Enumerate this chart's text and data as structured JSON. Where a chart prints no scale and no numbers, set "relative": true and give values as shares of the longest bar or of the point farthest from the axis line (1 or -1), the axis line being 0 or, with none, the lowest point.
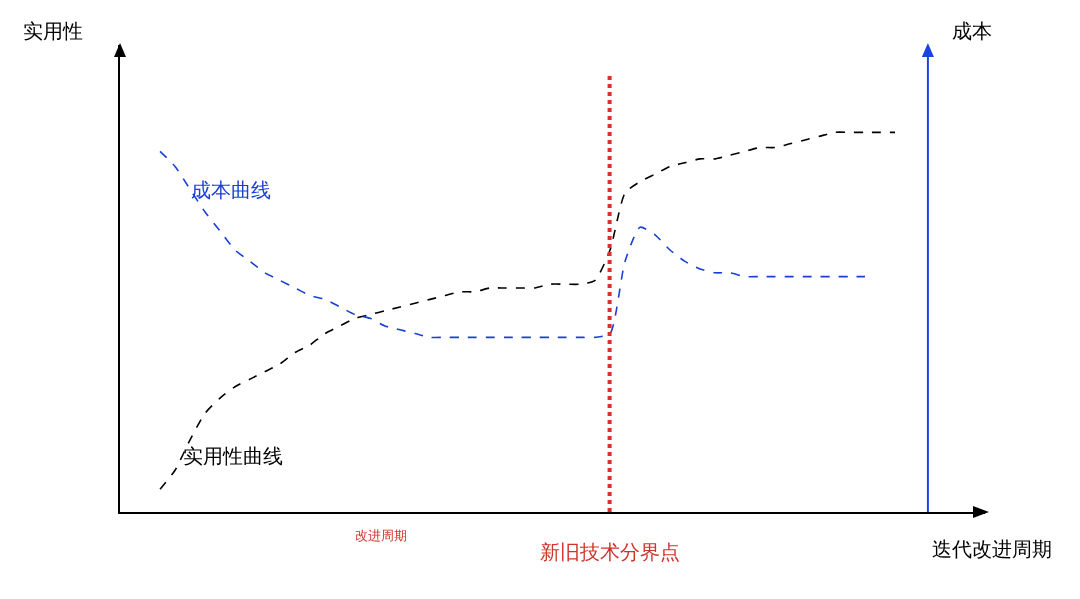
{
  "chart_data": {
    "type": "line",
    "relative": true,
    "xlabel": "迭代改进周期",
    "annotations": [
      "实用性",
      "成本",
      "改进周期",
      "新旧技术分界点"
    ],
    "categories": [
      null,
      null,
      null,
      null,
      null,
      null,
      null,
      null,
      null,
      null,
      null,
      null,
      null,
      null,
      null,
      null,
      null,
      null,
      null,
      null,
      null,
      null,
      null,
      null,
      null,
      null,
      null,
      null,
      null,
      null,
      null,
      null,
      null,
      null,
      null,
      null,
      null,
      null,
      null,
      null,
      null,
      null,
      null,
      null,
      null,
      null,
      null,
      null,
      null,
      null
    ],
    "series": [
      {
        "name": "实用性曲线",
        "color": "#000000",
        "values": [
          0.06,
          0.11,
          0.19,
          0.26,
          0.3,
          0.33,
          0.35,
          0.37,
          0.39,
          0.42,
          0.44,
          0.47,
          0.49,
          0.51,
          0.52,
          0.53,
          0.54,
          0.55,
          0.56,
          0.57,
          0.58,
          0.58,
          0.59,
          0.59,
          0.59,
          0.59,
          0.6,
          0.6,
          0.6,
          0.61,
          0.69,
          0.84,
          0.87,
          0.89,
          0.91,
          0.92,
          0.93,
          0.93,
          0.94,
          0.95,
          0.96,
          0.96,
          0.97,
          0.98,
          0.99,
          1,
          1,
          1,
          1,
          1
        ]
      },
      {
        "name": "成本曲线",
        "color": "#1a3fd6",
        "values": [
          0.95,
          0.91,
          0.85,
          0.79,
          0.74,
          0.69,
          0.66,
          0.63,
          0.61,
          0.59,
          0.57,
          0.56,
          0.54,
          0.52,
          0.51,
          0.49,
          0.48,
          0.47,
          0.46,
          0.46,
          0.46,
          0.46,
          0.46,
          0.46,
          0.46,
          0.46,
          0.46,
          0.46,
          0.46,
          0.46,
          0.47,
          0.66,
          0.75,
          0.73,
          0.69,
          0.66,
          0.64,
          0.63,
          0.63,
          0.62,
          0.62,
          0.62,
          0.62,
          0.62,
          0.62,
          0.62,
          0.62,
          0.62,
          null,
          null
        ]
      }
    ],
    "line_style": "dashed",
    "marker": "none",
    "grid": false,
    "legend": false
  }
}
